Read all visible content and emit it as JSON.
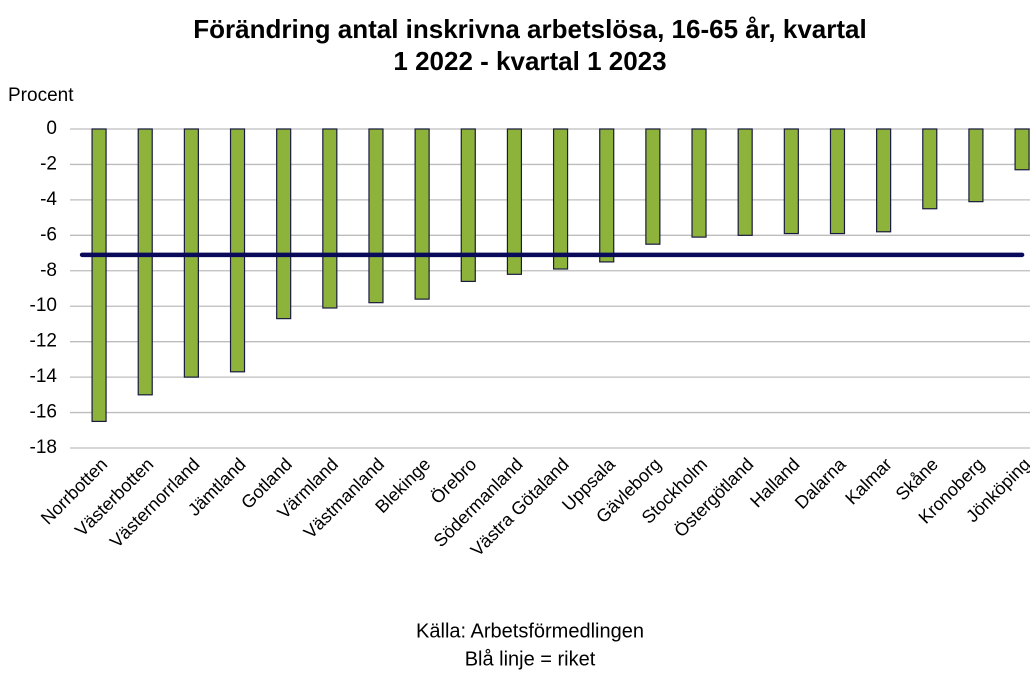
{
  "chart_data": {
    "type": "bar",
    "title": [
      "Förändring antal inskrivna arbetslösa, 16-65 år, kvartal",
      "1 2022 - kvartal 1 2023"
    ],
    "ylabel": "Procent",
    "categories": [
      "Norrbotten",
      "Västerbotten",
      "Västernorrland",
      "Jämtland",
      "Gotland",
      "Värmland",
      "Västmanland",
      "Blekinge",
      "Örebro",
      "Södermanland",
      "Västra Götaland",
      "Uppsala",
      "Gävleborg",
      "Stockholm",
      "Östergötland",
      "Halland",
      "Dalarna",
      "Kalmar",
      "Skåne",
      "Kronoberg",
      "Jönköping"
    ],
    "values": [
      -16.5,
      -15.0,
      -14.0,
      -13.7,
      -10.7,
      -10.1,
      -9.8,
      -9.6,
      -8.6,
      -8.2,
      -7.9,
      -7.5,
      -6.5,
      -6.1,
      -6.0,
      -5.9,
      -5.9,
      -5.8,
      -4.5,
      -4.1,
      -2.3
    ],
    "color": "#8db33a",
    "reference_line": -7.1,
    "reference_color": "#0a0a5a",
    "ylim": [
      -18,
      0
    ],
    "yticks": [
      0,
      -2,
      -4,
      -6,
      -8,
      -10,
      -12,
      -14,
      -16,
      -18
    ],
    "grid": true,
    "notes": [
      "Källa: Arbetsförmedlingen",
      "Blå linje = riket"
    ]
  }
}
